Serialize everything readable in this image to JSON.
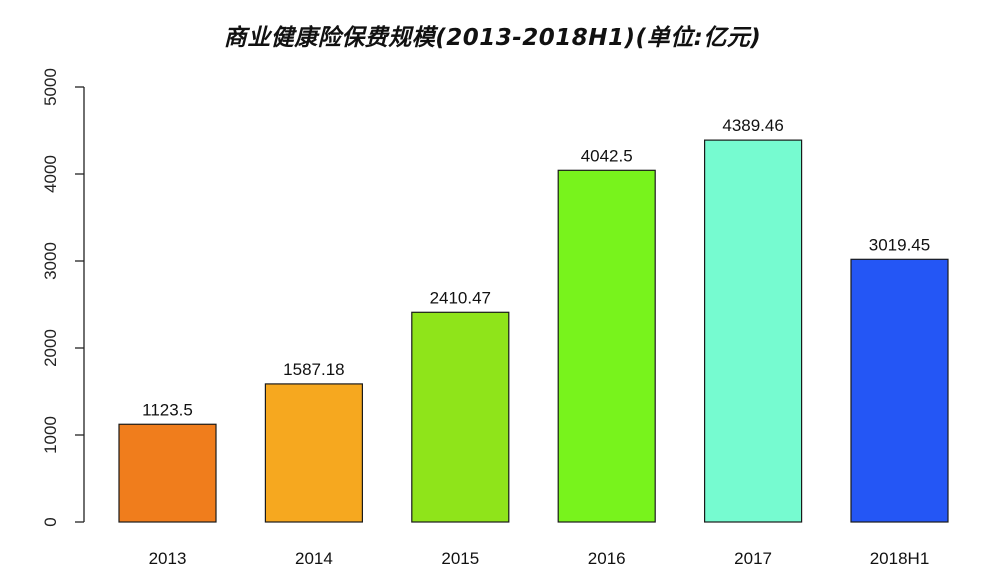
{
  "chart_data": {
    "type": "bar",
    "title": "商业健康险保费规模(2013-2018H1)(单位:亿元)",
    "xlabel": "",
    "ylabel": "",
    "categories": [
      "2013",
      "2014",
      "2015",
      "2016",
      "2017",
      "2018H1"
    ],
    "values": [
      1123.5,
      1587.18,
      2410.47,
      4042.5,
      4389.46,
      3019.45
    ],
    "data_labels": [
      "1123.5",
      "1587.18",
      "2410.47",
      "4042.5",
      "4389.46",
      "3019.45"
    ],
    "colors": [
      "#f07d1c",
      "#f6a81f",
      "#8fe41a",
      "#78f31c",
      "#76fbd0",
      "#2456f5"
    ],
    "ylim": [
      0,
      5000
    ],
    "yticks": [
      0,
      1000,
      2000,
      3000,
      4000,
      5000
    ],
    "ytick_labels": [
      "0",
      "1000",
      "2000",
      "3000",
      "4000",
      "5000"
    ],
    "grid": false,
    "legend": "none"
  }
}
